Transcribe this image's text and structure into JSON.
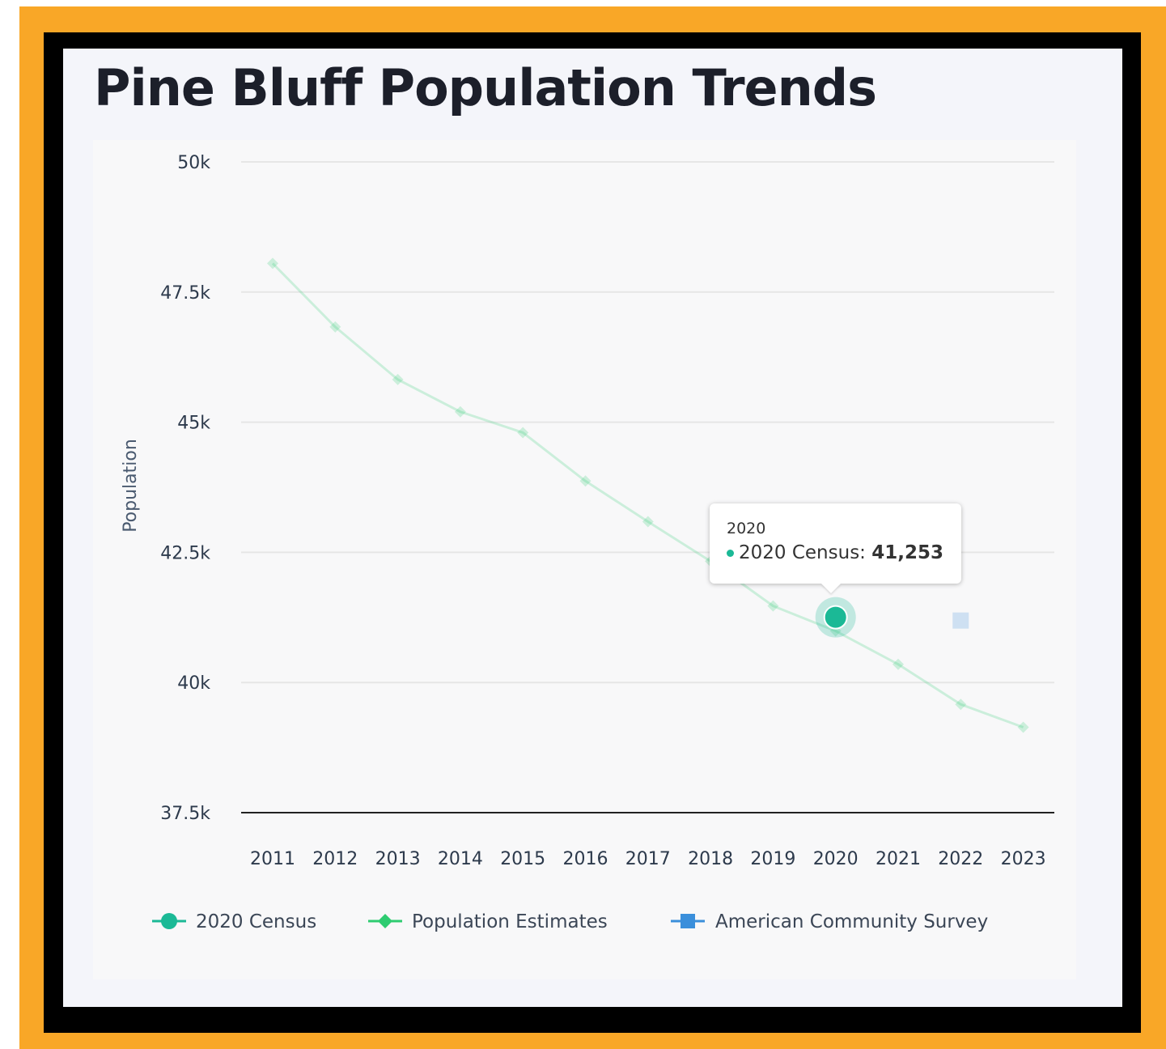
{
  "title": "Pine Bluff Population Trends",
  "colors": {
    "census": "#1bb996",
    "estimates": "#2ecc71",
    "acs": "#3a8fdb"
  },
  "tooltip": {
    "year": "2020",
    "series_label": "2020 Census:",
    "value": "41,253"
  },
  "chart_data": {
    "type": "line",
    "title": "Pine Bluff Population Trends",
    "xlabel": "",
    "ylabel": "Population",
    "ylim": [
      37500,
      50000
    ],
    "yticks": [
      50000,
      47500,
      45000,
      42500,
      40000,
      37500
    ],
    "ytick_labels": [
      "50k",
      "47.5k",
      "45k",
      "42.5k",
      "40k",
      "37.5k"
    ],
    "x": [
      "2011",
      "2012",
      "2013",
      "2014",
      "2015",
      "2016",
      "2017",
      "2018",
      "2019",
      "2020",
      "2021",
      "2022",
      "2023"
    ],
    "grid": true,
    "legend_position": "bottom",
    "series": [
      {
        "name": "2020 Census",
        "points": [
          {
            "x": "2020",
            "y": 41253
          }
        ]
      },
      {
        "name": "Population Estimates",
        "points": [
          {
            "x": "2011",
            "y": 48050
          },
          {
            "x": "2012",
            "y": 46830
          },
          {
            "x": "2013",
            "y": 45820
          },
          {
            "x": "2014",
            "y": 45200
          },
          {
            "x": "2015",
            "y": 44800
          },
          {
            "x": "2016",
            "y": 43870
          },
          {
            "x": "2017",
            "y": 43090
          },
          {
            "x": "2018",
            "y": 42330
          },
          {
            "x": "2019",
            "y": 41470
          },
          {
            "x": "2020",
            "y": 40990
          },
          {
            "x": "2021",
            "y": 40350
          },
          {
            "x": "2022",
            "y": 39580
          },
          {
            "x": "2023",
            "y": 39140
          }
        ]
      },
      {
        "name": "American Community Survey",
        "points": [
          {
            "x": "2022",
            "y": 41190
          }
        ]
      }
    ]
  }
}
